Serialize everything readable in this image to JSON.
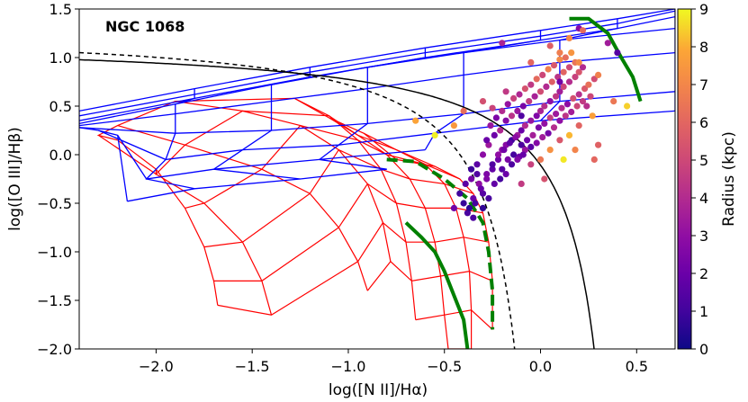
{
  "chart_data": {
    "type": "scatter",
    "title": "NGC 1068",
    "xlabel": "log([N II]/Hα)",
    "ylabel": "log([O III]/Hβ)",
    "xlim": [
      -2.4,
      0.7
    ],
    "ylim": [
      -2.0,
      1.5
    ],
    "xticks": [
      -2.0,
      -1.5,
      -1.0,
      -0.5,
      0.0,
      0.5
    ],
    "yticks": [
      -2.0,
      -1.5,
      -1.0,
      -0.5,
      0.0,
      0.5,
      1.0,
      1.5
    ],
    "xtick_labels": [
      "−2.0",
      "−1.5",
      "−1.0",
      "−0.5",
      "0.0",
      "0.5"
    ],
    "ytick_labels": [
      "−2.0",
      "−1.5",
      "−1.0",
      "−0.5",
      "0.0",
      "0.5",
      "1.0",
      "1.5"
    ],
    "colorbar": {
      "label": "Radius (kpc)",
      "range": [
        0,
        9
      ],
      "ticks": [
        0,
        1,
        2,
        3,
        4,
        5,
        6,
        7,
        8,
        9
      ],
      "colormap": "plasma"
    },
    "kewley_line": {
      "name": "maximum starburst (solid black)",
      "color": "#000000"
    },
    "kauffmann_line": {
      "name": "Kauffmann demarcation (dashed black)",
      "color": "#000000"
    },
    "star_forming_grid": {
      "color": "#ff0000",
      "rows": [
        [
          [
            -0.75,
            -0.05
          ],
          [
            -0.55,
            -0.12
          ],
          [
            -0.42,
            -0.25
          ],
          [
            -0.35,
            -0.4
          ],
          [
            -0.3,
            -0.6
          ],
          [
            -0.27,
            -0.9
          ],
          [
            -0.25,
            -1.3
          ],
          [
            -0.25,
            -1.8
          ]
        ],
        [
          [
            -0.92,
            0.22
          ],
          [
            -0.75,
            0.05
          ],
          [
            -0.6,
            -0.1
          ],
          [
            -0.5,
            -0.3
          ],
          [
            -0.44,
            -0.55
          ],
          [
            -0.4,
            -0.85
          ],
          [
            -0.37,
            -1.2
          ],
          [
            -0.36,
            -1.6
          ],
          [
            -0.36,
            -2.0
          ]
        ],
        [
          [
            -1.1,
            0.38
          ],
          [
            -0.95,
            0.2
          ],
          [
            -0.8,
            0.0
          ],
          [
            -0.68,
            -0.25
          ],
          [
            -0.6,
            -0.55
          ],
          [
            -0.55,
            -0.9
          ],
          [
            -0.52,
            -1.25
          ],
          [
            -0.5,
            -1.65
          ],
          [
            -0.48,
            -2.0
          ]
        ],
        [
          [
            -1.28,
            0.58
          ],
          [
            -1.1,
            0.4
          ],
          [
            -0.95,
            0.15
          ],
          [
            -0.83,
            -0.15
          ],
          [
            -0.75,
            -0.5
          ],
          [
            -0.7,
            -0.9
          ],
          [
            -0.67,
            -1.3
          ],
          [
            -0.65,
            -1.7
          ]
        ],
        [
          [
            -1.9,
            0.55
          ],
          [
            -1.55,
            0.45
          ],
          [
            -1.25,
            0.3
          ],
          [
            -1.05,
            0.05
          ],
          [
            -0.9,
            -0.3
          ],
          [
            -0.82,
            -0.7
          ],
          [
            -0.78,
            -1.1
          ]
        ],
        [
          [
            -2.2,
            0.3
          ],
          [
            -1.85,
            0.1
          ],
          [
            -1.45,
            -0.15
          ],
          [
            -1.2,
            -0.4
          ],
          [
            -1.05,
            -0.75
          ],
          [
            -0.95,
            -1.1
          ],
          [
            -0.9,
            -1.4
          ]
        ],
        [
          [
            -2.3,
            0.2
          ],
          [
            -2.0,
            -0.2
          ],
          [
            -1.75,
            -0.5
          ],
          [
            -1.55,
            -0.9
          ],
          [
            -1.45,
            -1.3
          ],
          [
            -1.4,
            -1.65
          ]
        ],
        [
          [
            -2.2,
            0.15
          ],
          [
            -2.0,
            -0.15
          ],
          [
            -1.85,
            -0.55
          ],
          [
            -1.75,
            -0.95
          ],
          [
            -1.7,
            -1.3
          ],
          [
            -1.68,
            -1.55
          ]
        ]
      ]
    },
    "agn_grid": {
      "color": "#0000ff",
      "rows": [
        [
          [
            -2.4,
            0.4
          ],
          [
            -1.8,
            0.62
          ],
          [
            -1.2,
            0.85
          ],
          [
            -0.6,
            1.05
          ],
          [
            0.0,
            1.22
          ],
          [
            0.4,
            1.35
          ],
          [
            0.7,
            1.48
          ]
        ],
        [
          [
            -2.4,
            0.45
          ],
          [
            -1.8,
            0.68
          ],
          [
            -1.2,
            0.9
          ],
          [
            -0.6,
            1.1
          ],
          [
            0.0,
            1.28
          ],
          [
            0.4,
            1.4
          ],
          [
            0.7,
            1.5
          ]
        ],
        [
          [
            -2.4,
            0.35
          ],
          [
            -1.8,
            0.58
          ],
          [
            -1.2,
            0.8
          ],
          [
            -0.6,
            1.0
          ],
          [
            0.0,
            1.18
          ],
          [
            0.4,
            1.3
          ],
          [
            0.7,
            1.42
          ]
        ],
        [
          [
            -2.4,
            0.32
          ],
          [
            -1.9,
            0.52
          ],
          [
            -1.4,
            0.72
          ],
          [
            -0.9,
            0.9
          ],
          [
            -0.4,
            1.05
          ],
          [
            0.1,
            1.18
          ],
          [
            0.7,
            1.3
          ]
        ],
        [
          [
            -2.4,
            0.3
          ],
          [
            -1.9,
            0.42
          ],
          [
            -1.4,
            0.55
          ],
          [
            -0.9,
            0.68
          ],
          [
            -0.4,
            0.82
          ],
          [
            0.1,
            0.95
          ],
          [
            0.7,
            1.05
          ]
        ],
        [
          [
            -2.4,
            0.28
          ],
          [
            -1.9,
            0.22
          ],
          [
            -1.4,
            0.25
          ],
          [
            -0.9,
            0.32
          ],
          [
            -0.4,
            0.42
          ],
          [
            0.1,
            0.55
          ],
          [
            0.7,
            0.65
          ]
        ],
        [
          [
            -2.3,
            0.25
          ],
          [
            -1.95,
            -0.05
          ],
          [
            -1.55,
            0.05
          ],
          [
            -1.05,
            0.1
          ],
          [
            -0.55,
            0.22
          ],
          [
            0.0,
            0.35
          ],
          [
            0.7,
            0.45
          ]
        ],
        [
          [
            -2.2,
            0.2
          ],
          [
            -2.05,
            -0.25
          ],
          [
            -1.7,
            -0.15
          ],
          [
            -1.15,
            -0.05
          ],
          [
            -0.6,
            0.05
          ]
        ],
        [
          [
            -2.15,
            -0.48
          ],
          [
            -1.8,
            -0.35
          ],
          [
            -1.25,
            -0.25
          ],
          [
            -0.8,
            -0.15
          ]
        ]
      ]
    },
    "green_tracks": {
      "color": "#008000",
      "solid_sf": [
        [
          -0.7,
          -0.7
        ],
        [
          -0.62,
          -0.85
        ],
        [
          -0.55,
          -1.0
        ],
        [
          -0.5,
          -1.2
        ],
        [
          -0.45,
          -1.45
        ],
        [
          -0.4,
          -1.7
        ],
        [
          -0.38,
          -2.0
        ]
      ],
      "dashed_sf": [
        [
          -0.8,
          -0.05
        ],
        [
          -0.65,
          -0.07
        ],
        [
          -0.5,
          -0.25
        ],
        [
          -0.38,
          -0.45
        ],
        [
          -0.3,
          -0.7
        ],
        [
          -0.27,
          -1.0
        ],
        [
          -0.25,
          -1.4
        ],
        [
          -0.25,
          -1.8
        ]
      ],
      "solid_agn": [
        [
          0.15,
          1.4
        ],
        [
          0.25,
          1.4
        ],
        [
          0.35,
          1.25
        ],
        [
          0.42,
          1.0
        ],
        [
          0.48,
          0.8
        ],
        [
          0.52,
          0.55
        ]
      ]
    },
    "scatter_points": [
      [
        -0.38,
        -0.6,
        1.2
      ],
      [
        -0.35,
        -0.45,
        2.0
      ],
      [
        -0.3,
        -0.4,
        1.5
      ],
      [
        -0.32,
        -0.3,
        3.0
      ],
      [
        -0.28,
        -0.2,
        2.5
      ],
      [
        -0.25,
        -0.15,
        1.8
      ],
      [
        -0.22,
        -0.05,
        2.2
      ],
      [
        -0.2,
        0.05,
        3.1
      ],
      [
        -0.18,
        0.1,
        2.8
      ],
      [
        -0.15,
        0.15,
        1.0
      ],
      [
        -0.12,
        0.2,
        3.5
      ],
      [
        -0.1,
        0.25,
        2.0
      ],
      [
        -0.08,
        0.3,
        4.0
      ],
      [
        -0.05,
        0.35,
        3.2
      ],
      [
        -0.02,
        0.4,
        2.6
      ],
      [
        0.0,
        0.45,
        3.8
      ],
      [
        0.02,
        0.5,
        4.2
      ],
      [
        0.05,
        0.55,
        3.0
      ],
      [
        0.08,
        0.6,
        4.5
      ],
      [
        0.1,
        0.65,
        3.6
      ],
      [
        0.12,
        0.7,
        5.0
      ],
      [
        0.15,
        0.75,
        4.1
      ],
      [
        0.18,
        0.8,
        4.8
      ],
      [
        0.2,
        0.85,
        5.5
      ],
      [
        0.22,
        0.9,
        4.0
      ],
      [
        -0.4,
        -0.5,
        0.8
      ],
      [
        -0.36,
        -0.25,
        2.3
      ],
      [
        -0.33,
        -0.1,
        1.6
      ],
      [
        -0.3,
        0.0,
        2.9
      ],
      [
        -0.27,
        0.1,
        3.4
      ],
      [
        -0.24,
        0.2,
        2.1
      ],
      [
        -0.21,
        0.25,
        3.9
      ],
      [
        -0.18,
        0.35,
        2.7
      ],
      [
        -0.15,
        0.4,
        4.3
      ],
      [
        -0.12,
        0.45,
        3.3
      ],
      [
        -0.09,
        0.5,
        2.4
      ],
      [
        -0.06,
        0.55,
        4.6
      ],
      [
        -0.03,
        0.6,
        3.7
      ],
      [
        0.0,
        0.65,
        5.2
      ],
      [
        0.03,
        0.7,
        4.0
      ],
      [
        0.06,
        0.75,
        5.8
      ],
      [
        0.09,
        0.8,
        4.4
      ],
      [
        0.12,
        0.85,
        6.0
      ],
      [
        0.15,
        0.9,
        5.1
      ],
      [
        0.18,
        0.95,
        6.5
      ],
      [
        -0.34,
        -0.5,
        1.1
      ],
      [
        -0.31,
        -0.35,
        1.9
      ],
      [
        -0.28,
        -0.25,
        2.6
      ],
      [
        -0.25,
        -0.1,
        1.4
      ],
      [
        -0.22,
        0.0,
        3.0
      ],
      [
        -0.19,
        0.05,
        2.2
      ],
      [
        -0.16,
        0.12,
        1.7
      ],
      [
        -0.13,
        0.18,
        2.9
      ],
      [
        -0.1,
        0.1,
        1.3
      ],
      [
        -0.07,
        0.15,
        2.1
      ],
      [
        -0.04,
        0.2,
        3.6
      ],
      [
        -0.01,
        0.28,
        2.4
      ],
      [
        0.02,
        0.32,
        3.1
      ],
      [
        0.05,
        0.38,
        4.7
      ],
      [
        0.08,
        0.42,
        3.4
      ],
      [
        0.11,
        0.48,
        4.0
      ],
      [
        0.14,
        0.52,
        3.0
      ],
      [
        0.17,
        0.58,
        5.3
      ],
      [
        0.2,
        0.62,
        4.2
      ],
      [
        0.23,
        0.68,
        5.6
      ],
      [
        -0.2,
        -0.15,
        1.5
      ],
      [
        -0.17,
        -0.05,
        2.4
      ],
      [
        -0.14,
        0.0,
        1.1
      ],
      [
        -0.11,
        -0.02,
        2.0
      ],
      [
        -0.08,
        0.05,
        3.2
      ],
      [
        -0.05,
        0.08,
        1.6
      ],
      [
        -0.02,
        0.12,
        2.7
      ],
      [
        0.01,
        0.18,
        3.5
      ],
      [
        0.04,
        0.22,
        2.3
      ],
      [
        0.07,
        0.28,
        4.1
      ],
      [
        0.1,
        0.35,
        3.0
      ],
      [
        0.13,
        0.4,
        4.4
      ],
      [
        0.16,
        0.44,
        3.6
      ],
      [
        0.19,
        0.5,
        5.0
      ],
      [
        0.22,
        0.55,
        4.6
      ],
      [
        -0.26,
        0.3,
        3.3
      ],
      [
        -0.23,
        0.38,
        2.5
      ],
      [
        -0.2,
        0.45,
        4.0
      ],
      [
        -0.17,
        0.52,
        3.2
      ],
      [
        -0.14,
        0.58,
        4.8
      ],
      [
        -0.11,
        0.62,
        3.9
      ],
      [
        -0.08,
        0.68,
        5.4
      ],
      [
        -0.05,
        0.72,
        4.5
      ],
      [
        -0.02,
        0.78,
        6.2
      ],
      [
        0.01,
        0.82,
        5.0
      ],
      [
        0.04,
        0.88,
        6.8
      ],
      [
        0.07,
        0.92,
        5.6
      ],
      [
        0.1,
        0.98,
        7.2
      ],
      [
        0.13,
        1.0,
        6.3
      ],
      [
        0.16,
        1.05,
        7.5
      ],
      [
        -0.36,
        -0.15,
        0.9
      ],
      [
        -0.33,
        -0.2,
        1.4
      ],
      [
        -0.3,
        -0.55,
        0.7
      ],
      [
        -0.27,
        -0.45,
        1.2
      ],
      [
        -0.24,
        -0.3,
        1.8
      ],
      [
        -0.21,
        -0.25,
        1.1
      ],
      [
        -0.18,
        -0.2,
        2.0
      ],
      [
        -0.15,
        -0.1,
        1.3
      ],
      [
        -0.12,
        -0.05,
        2.6
      ],
      [
        -0.09,
        0.0,
        1.9
      ],
      [
        -0.42,
        -0.4,
        1.0
      ],
      [
        -0.39,
        -0.3,
        1.6
      ],
      [
        -0.37,
        -0.55,
        0.6
      ],
      [
        -0.35,
        -0.65,
        1.3
      ],
      [
        -0.45,
        -0.55,
        2.2
      ],
      [
        0.25,
        0.72,
        6.4
      ],
      [
        0.28,
        0.78,
        5.2
      ],
      [
        0.3,
        0.82,
        6.9
      ],
      [
        0.26,
        0.6,
        5.0
      ],
      [
        0.24,
        0.5,
        4.2
      ],
      [
        0.27,
        0.4,
        7.8
      ],
      [
        0.2,
        0.3,
        6.0
      ],
      [
        0.15,
        0.2,
        8.2
      ],
      [
        0.1,
        0.15,
        5.6
      ],
      [
        0.05,
        0.05,
        7.4
      ],
      [
        0.0,
        -0.05,
        6.6
      ],
      [
        -0.05,
        -0.1,
        4.8
      ],
      [
        0.12,
        -0.05,
        8.8
      ],
      [
        0.18,
        0.05,
        7.0
      ],
      [
        0.3,
        0.1,
        5.9
      ],
      [
        -0.55,
        0.2,
        8.9
      ],
      [
        -0.45,
        0.3,
        7.6
      ],
      [
        -0.25,
        0.48,
        4.9
      ],
      [
        -0.4,
        0.45,
        6.3
      ],
      [
        -0.65,
        0.35,
        7.9
      ],
      [
        0.35,
        1.15,
        3.5
      ],
      [
        0.4,
        1.05,
        1.5
      ],
      [
        0.2,
        0.95,
        7.2
      ],
      [
        0.1,
        1.05,
        6.8
      ],
      [
        -0.2,
        1.15,
        3.8
      ],
      [
        0.38,
        0.55,
        6.6
      ],
      [
        0.45,
        0.5,
        8.5
      ],
      [
        0.28,
        -0.05,
        6.1
      ],
      [
        0.02,
        -0.25,
        5.4
      ],
      [
        -0.1,
        -0.3,
        4.6
      ],
      [
        -0.3,
        0.55,
        5.3
      ],
      [
        -0.18,
        0.65,
        4.5
      ],
      [
        -0.05,
        0.95,
        6.1
      ],
      [
        0.05,
        1.12,
        5.8
      ],
      [
        0.15,
        1.2,
        7.1
      ],
      [
        0.2,
        1.3,
        2.8
      ],
      [
        0.22,
        1.28,
        6.2
      ],
      [
        0.1,
        0.75,
        2.2
      ],
      [
        -0.1,
        0.4,
        1.4
      ],
      [
        -0.28,
        0.15,
        2.0
      ]
    ]
  }
}
